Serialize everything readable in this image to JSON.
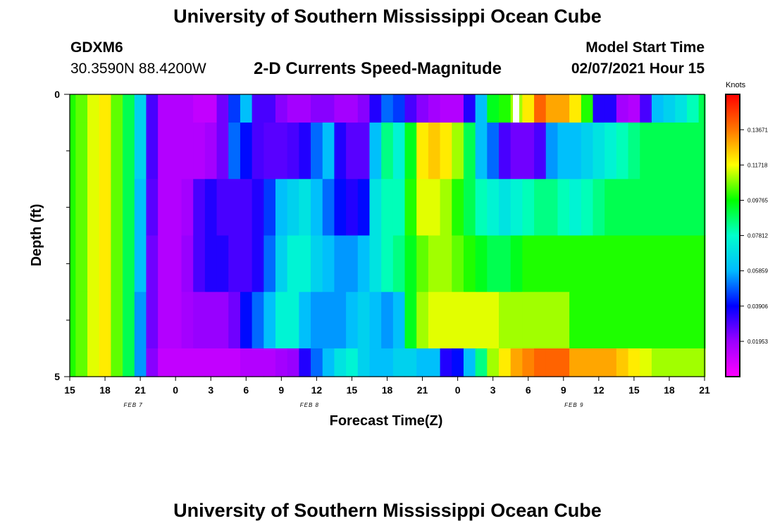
{
  "header": {
    "title": "University of Southern Mississippi Ocean Cube",
    "station_id": "GDXM6",
    "location": "30.3590N 88.4200W",
    "chart_title": "2-D Currents Speed-Magnitude",
    "model_start_label": "Model Start Time",
    "model_start_value": "02/07/2021 Hour 15"
  },
  "footer": {
    "title": "University of Southern Mississippi Ocean Cube"
  },
  "chart_data": {
    "type": "heatmap",
    "title": "2-D Currents Speed-Magnitude",
    "xlabel": "Forecast Time(Z)",
    "ylabel": "Depth (ft)",
    "ylim": [
      0,
      5
    ],
    "y_ticks": [
      "0",
      "5"
    ],
    "x_tick_labels": [
      "15",
      "18",
      "21",
      "0",
      "3",
      "6",
      "9",
      "12",
      "15",
      "18",
      "21",
      "0",
      "3",
      "6",
      "9",
      "12",
      "15",
      "18",
      "21"
    ],
    "day_labels": [
      {
        "text": "FEB 7",
        "tick_index": 1.8
      },
      {
        "text": "FEB 8",
        "tick_index": 6.8
      },
      {
        "text": "FEB 9",
        "tick_index": 14.3
      }
    ],
    "x_range_hours": [
      0,
      54
    ],
    "depth_bins": [
      0,
      1,
      2,
      3,
      4
    ],
    "colorbar": {
      "label": "Knots",
      "min": 0.0,
      "max": 0.1563,
      "ticks": [
        "0.01953",
        "0.03906",
        "0.05859",
        "0.07812",
        "0.09765",
        "0.11718",
        "0.13671"
      ],
      "tick_values": [
        0.01953,
        0.03906,
        0.05859,
        0.07812,
        0.09765,
        0.11718,
        0.13671
      ]
    },
    "rows": [
      {
        "depth": "0.0-0.5 ft",
        "knots": {
          "0": 0.1,
          "1": 0.105,
          "2": 0.115,
          "3": 0.12,
          "4": 0.105,
          "5": 0.09,
          "6": 0.065,
          "7": 0.03,
          "8": 0.015,
          "9": 0.015,
          "10": 0.015,
          "11": 0.012,
          "12": 0.012,
          "13": 0.025,
          "14": 0.045,
          "15": 0.06,
          "16": 0.03,
          "17": 0.03,
          "18": 0.022,
          "19": 0.018,
          "20": 0.018,
          "21": 0.022,
          "22": 0.022,
          "23": 0.018,
          "24": 0.018,
          "25": 0.022,
          "26": 0.035,
          "27": 0.05,
          "28": 0.045,
          "29": 0.03,
          "30": 0.022,
          "31": 0.018,
          "32": 0.015,
          "33": 0.015,
          "34": 0.035,
          "35": 0.06,
          "36": 0.095,
          "37": 0.1,
          "38": 0.11,
          "39": 0.12,
          "40": 0.14,
          "41": 0.13,
          "42": 0.13,
          "43": 0.12,
          "44": 0.1,
          "45": 0.035,
          "46": 0.035,
          "47": 0.018,
          "48": 0.015,
          "49": 0.03,
          "50": 0.06,
          "51": 0.065,
          "52": 0.07,
          "53": 0.08,
          "54": 0.09
        }
      },
      {
        "depth": "0.5-1.5 ft",
        "knots": {
          "0": 0.1,
          "1": 0.105,
          "2": 0.115,
          "3": 0.12,
          "4": 0.105,
          "5": 0.09,
          "6": 0.065,
          "7": 0.03,
          "8": 0.015,
          "9": 0.015,
          "10": 0.015,
          "11": 0.015,
          "12": 0.018,
          "13": 0.025,
          "14": 0.05,
          "15": 0.04,
          "16": 0.03,
          "17": 0.028,
          "18": 0.028,
          "19": 0.03,
          "20": 0.035,
          "21": 0.05,
          "22": 0.06,
          "23": 0.035,
          "24": 0.028,
          "25": 0.028,
          "26": 0.06,
          "27": 0.085,
          "28": 0.075,
          "29": 0.095,
          "30": 0.12,
          "31": 0.125,
          "32": 0.12,
          "33": 0.11,
          "34": 0.09,
          "35": 0.06,
          "36": 0.05,
          "37": 0.03,
          "38": 0.025,
          "39": 0.025,
          "40": 0.03,
          "41": 0.055,
          "42": 0.06,
          "43": 0.06,
          "44": 0.065,
          "45": 0.07,
          "46": 0.075,
          "47": 0.08,
          "48": 0.085,
          "49": 0.09,
          "50": 0.09,
          "51": 0.09,
          "52": 0.09,
          "53": 0.09,
          "54": 0.09
        }
      },
      {
        "depth": "1.5-2.5 ft",
        "knots": {
          "0": 0.1,
          "1": 0.105,
          "2": 0.115,
          "3": 0.12,
          "4": 0.105,
          "5": 0.09,
          "6": 0.06,
          "7": 0.028,
          "8": 0.015,
          "9": 0.015,
          "10": 0.018,
          "11": 0.03,
          "12": 0.035,
          "13": 0.03,
          "14": 0.03,
          "15": 0.03,
          "16": 0.035,
          "17": 0.045,
          "18": 0.06,
          "19": 0.065,
          "20": 0.07,
          "21": 0.06,
          "22": 0.05,
          "23": 0.04,
          "24": 0.035,
          "25": 0.04,
          "26": 0.07,
          "27": 0.08,
          "28": 0.08,
          "29": 0.1,
          "30": 0.115,
          "31": 0.115,
          "32": 0.11,
          "33": 0.1,
          "34": 0.09,
          "35": 0.08,
          "36": 0.075,
          "37": 0.07,
          "38": 0.075,
          "39": 0.08,
          "40": 0.085,
          "41": 0.085,
          "42": 0.08,
          "43": 0.075,
          "44": 0.08,
          "45": 0.085,
          "46": 0.09,
          "47": 0.09,
          "48": 0.09,
          "49": 0.09,
          "50": 0.09,
          "51": 0.09,
          "52": 0.09,
          "53": 0.09,
          "54": 0.09
        }
      },
      {
        "depth": "2.5-3.5 ft",
        "knots": {
          "0": 0.1,
          "1": 0.105,
          "2": 0.115,
          "3": 0.12,
          "4": 0.105,
          "5": 0.09,
          "6": 0.06,
          "7": 0.025,
          "8": 0.015,
          "9": 0.015,
          "10": 0.02,
          "11": 0.03,
          "12": 0.035,
          "13": 0.035,
          "14": 0.03,
          "15": 0.03,
          "16": 0.035,
          "17": 0.05,
          "18": 0.065,
          "19": 0.075,
          "20": 0.075,
          "21": 0.065,
          "22": 0.06,
          "23": 0.055,
          "24": 0.055,
          "25": 0.06,
          "26": 0.07,
          "27": 0.08,
          "28": 0.085,
          "29": 0.095,
          "30": 0.105,
          "31": 0.11,
          "32": 0.11,
          "33": 0.105,
          "34": 0.1,
          "35": 0.095,
          "36": 0.09,
          "37": 0.09,
          "38": 0.095,
          "39": 0.1,
          "40": 0.1,
          "41": 0.1,
          "42": 0.1,
          "43": 0.1,
          "44": 0.1,
          "45": 0.1,
          "46": 0.1,
          "47": 0.1,
          "48": 0.1,
          "49": 0.1,
          "50": 0.1,
          "51": 0.1,
          "52": 0.1,
          "53": 0.1,
          "54": 0.1
        }
      },
      {
        "depth": "3.5-4.5 ft",
        "knots": {
          "0": 0.1,
          "1": 0.105,
          "2": 0.115,
          "3": 0.12,
          "4": 0.105,
          "5": 0.09,
          "6": 0.055,
          "7": 0.025,
          "8": 0.015,
          "9": 0.015,
          "10": 0.018,
          "11": 0.02,
          "12": 0.02,
          "13": 0.02,
          "14": 0.025,
          "15": 0.04,
          "16": 0.05,
          "17": 0.06,
          "18": 0.075,
          "19": 0.075,
          "20": 0.06,
          "21": 0.055,
          "22": 0.055,
          "23": 0.055,
          "24": 0.06,
          "25": 0.065,
          "26": 0.06,
          "27": 0.055,
          "28": 0.06,
          "29": 0.095,
          "30": 0.11,
          "31": 0.115,
          "32": 0.115,
          "33": 0.115,
          "34": 0.115,
          "35": 0.115,
          "36": 0.115,
          "37": 0.11,
          "38": 0.11,
          "39": 0.11,
          "40": 0.11,
          "41": 0.11,
          "42": 0.11,
          "43": 0.1,
          "44": 0.1,
          "45": 0.1,
          "46": 0.1,
          "47": 0.1,
          "48": 0.1,
          "49": 0.1,
          "50": 0.1,
          "51": 0.1,
          "52": 0.1,
          "53": 0.1,
          "54": 0.1
        }
      },
      {
        "depth": "4.5-5.0 ft",
        "knots": {
          "0": 0.1,
          "1": 0.105,
          "2": 0.115,
          "3": 0.12,
          "4": 0.105,
          "5": 0.09,
          "6": 0.055,
          "7": 0.022,
          "8": 0.012,
          "9": 0.012,
          "10": 0.012,
          "11": 0.012,
          "12": 0.012,
          "13": 0.012,
          "14": 0.012,
          "15": 0.015,
          "16": 0.015,
          "17": 0.015,
          "18": 0.018,
          "19": 0.02,
          "20": 0.035,
          "21": 0.05,
          "22": 0.06,
          "23": 0.07,
          "24": 0.075,
          "25": 0.065,
          "26": 0.06,
          "27": 0.06,
          "28": 0.065,
          "29": 0.065,
          "30": 0.06,
          "31": 0.06,
          "32": 0.035,
          "33": 0.04,
          "34": 0.06,
          "35": 0.085,
          "36": 0.11,
          "37": 0.12,
          "38": 0.13,
          "39": 0.135,
          "40": 0.14,
          "41": 0.14,
          "42": 0.14,
          "43": 0.13,
          "44": 0.13,
          "45": 0.13,
          "46": 0.13,
          "47": 0.125,
          "48": 0.12,
          "49": 0.115,
          "50": 0.11,
          "51": 0.11,
          "52": 0.11,
          "53": 0.11,
          "54": 0.11
        }
      }
    ]
  }
}
